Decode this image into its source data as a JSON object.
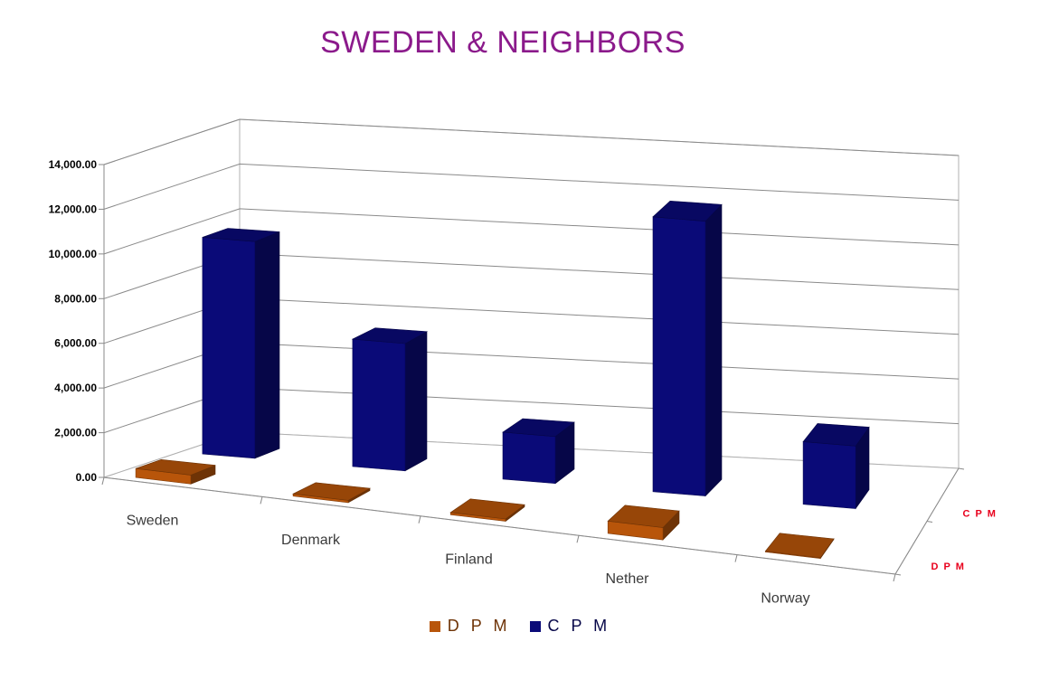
{
  "chart_data": {
    "type": "bar",
    "title": "SWEDEN & NEIGHBORS",
    "categories": [
      "Sweden",
      "Denmark",
      "Finland",
      "Nether",
      "Norway"
    ],
    "series": [
      {
        "name": "D P M",
        "depth_label": "D P M",
        "color": "#b8550a",
        "values": [
          400,
          100,
          100,
          550,
          30
        ]
      },
      {
        "name": "C P M",
        "depth_label": "C P M",
        "color": "#0a0a78",
        "values": [
          9700,
          5700,
          2100,
          12300,
          2800
        ]
      }
    ],
    "yticks": [
      "0.00",
      "2,000.00",
      "4,000.00",
      "6,000.00",
      "8,000.00",
      "10,000.00",
      "12,000.00",
      "14,000.00"
    ],
    "ylim": [
      0,
      14000
    ],
    "grid": true,
    "legend": "bottom",
    "legend_entries": [
      "D P M",
      "C P M"
    ]
  }
}
